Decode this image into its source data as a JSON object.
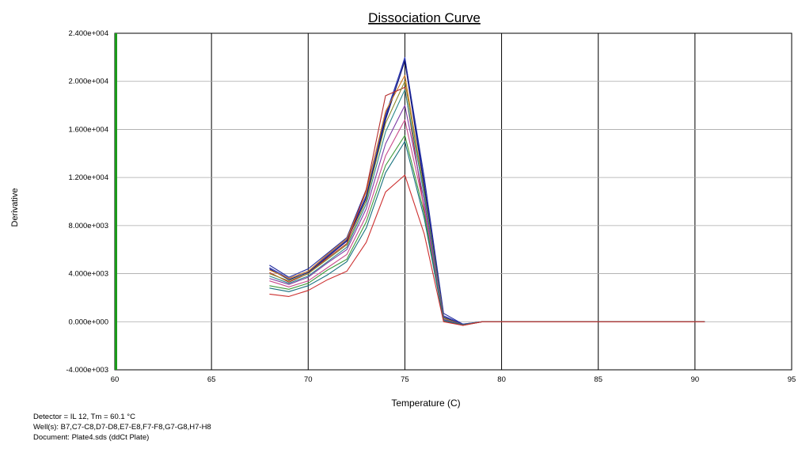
{
  "chart_data": {
    "type": "line",
    "title": "Dissociation Curve",
    "xlabel": "Temperature (C)",
    "ylabel": "Derivative",
    "xlim": [
      60,
      95
    ],
    "ylim": [
      -4000,
      24000
    ],
    "x_ticks": [
      60,
      65,
      70,
      75,
      80,
      85,
      90,
      95
    ],
    "x_tick_labels": [
      "60",
      "65",
      "70",
      "75",
      "80",
      "85",
      "90",
      "95"
    ],
    "y_ticks": [
      -4000,
      0,
      4000,
      8000,
      12000,
      16000,
      20000,
      24000
    ],
    "y_tick_labels": [
      "-4.000e+003",
      "0.000e+000",
      "4.000e+003",
      "8.000e+003",
      "1.200e+004",
      "1.600e+004",
      "2.000e+004",
      "2.400e+004"
    ],
    "grid": true,
    "legend": "none",
    "x": [
      68,
      69,
      70,
      71,
      72,
      73,
      74,
      75,
      76,
      77,
      78,
      79,
      80,
      85,
      90.5
    ],
    "series": [
      {
        "color": "#1f2a9e",
        "values": [
          4700,
          3700,
          4400,
          5700,
          7000,
          11000,
          17200,
          21900,
          12000,
          700,
          -200,
          0,
          0,
          0,
          0
        ]
      },
      {
        "color": "#2e39b5",
        "values": [
          4500,
          3600,
          4200,
          5500,
          6800,
          10500,
          17000,
          22000,
          11500,
          500,
          -200,
          0,
          0,
          0,
          0
        ]
      },
      {
        "color": "#0b0f6e",
        "values": [
          4400,
          3500,
          4100,
          5400,
          6700,
          10300,
          16800,
          21700,
          11200,
          400,
          -250,
          0,
          0,
          0,
          0
        ]
      },
      {
        "color": "#d27a1e",
        "values": [
          4300,
          3600,
          4200,
          5600,
          6900,
          10800,
          17500,
          20500,
          10800,
          300,
          -250,
          0,
          0,
          0,
          0
        ]
      },
      {
        "color": "#b52c2c",
        "values": [
          4100,
          3300,
          4000,
          5300,
          6500,
          11000,
          18800,
          19500,
          9200,
          100,
          -300,
          0,
          0,
          0,
          0
        ]
      },
      {
        "color": "#8d8a2a",
        "values": [
          4000,
          3400,
          4000,
          5200,
          6400,
          10100,
          16500,
          20000,
          10800,
          300,
          -300,
          0,
          0,
          0,
          0
        ]
      },
      {
        "color": "#2c8a8a",
        "values": [
          3800,
          3200,
          3800,
          5000,
          6200,
          9800,
          15800,
          19300,
          10500,
          200,
          -250,
          0,
          0,
          0,
          0
        ]
      },
      {
        "color": "#7d3aa5",
        "values": [
          3600,
          3100,
          3700,
          4900,
          6000,
          9400,
          14800,
          18000,
          10000,
          200,
          -250,
          0,
          0,
          0,
          0
        ]
      },
      {
        "color": "#c94c8c",
        "values": [
          3400,
          2900,
          3400,
          4500,
          5600,
          8800,
          13800,
          16800,
          9500,
          100,
          -250,
          0,
          0,
          0,
          0
        ]
      },
      {
        "color": "#3f9a3a",
        "values": [
          3000,
          2700,
          3200,
          4300,
          5200,
          8300,
          13000,
          15500,
          9000,
          100,
          -250,
          0,
          0,
          0,
          0
        ]
      },
      {
        "color": "#15707d",
        "values": [
          2800,
          2500,
          3000,
          3900,
          5000,
          7800,
          12400,
          15000,
          8600,
          100,
          -250,
          0,
          0,
          0,
          0
        ]
      },
      {
        "color": "#cc2e2e",
        "values": [
          2300,
          2100,
          2600,
          3500,
          4200,
          6600,
          10800,
          12200,
          7300,
          0,
          -300,
          0,
          0,
          0,
          0
        ]
      }
    ],
    "highlight_line": {
      "x": 60,
      "color": "#1b9a1b"
    }
  },
  "footer": {
    "line1": "Detector = IL 12, Tm = 60.1 °C",
    "line2": "Well(s): B7,C7-C8,D7-D8,E7-E8,F7-F8,G7-G8,H7-H8",
    "line3": "Document: Plate4.sds (ddCt Plate)"
  }
}
